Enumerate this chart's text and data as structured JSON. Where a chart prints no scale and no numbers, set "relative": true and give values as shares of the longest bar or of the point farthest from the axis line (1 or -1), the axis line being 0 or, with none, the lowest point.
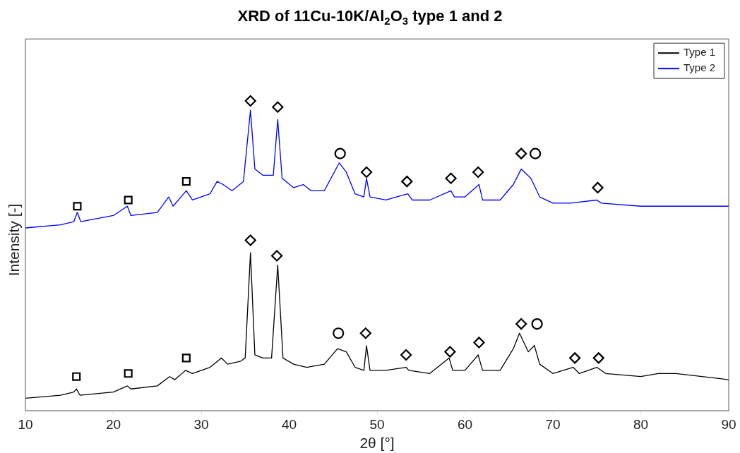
{
  "chart_data": {
    "type": "line",
    "title": "XRD of 11Cu-10K/Al$_{2}$O$_{3}$ type  1 and 2",
    "xlabel": "2θ [°]",
    "ylabel": "Intensity [-]",
    "relative": true,
    "xlim": [
      10,
      90
    ],
    "xticks": [
      10,
      20,
      30,
      40,
      50,
      60,
      70,
      80,
      90
    ],
    "tick_labels": "x",
    "legend": "top right",
    "grid": false,
    "marker": "none",
    "line_style": "solid",
    "series": [
      {
        "name": "Type 1",
        "color": "#000000",
        "x": [
          10,
          14,
          15.5,
          15.8,
          16.2,
          20,
          21.6,
          22,
          25,
          26.4,
          27,
          28.2,
          29,
          31,
          32.3,
          33,
          34.5,
          35,
          35.6,
          36.1,
          37,
          38,
          38.7,
          39.3,
          40.5,
          42,
          44,
          45.5,
          46.5,
          47.5,
          48.5,
          48.8,
          49.2,
          51,
          53.3,
          53.6,
          56,
          58.2,
          58.6,
          60,
          61.5,
          62,
          64,
          65.5,
          66.2,
          67.2,
          67.9,
          68.5,
          70,
          72.3,
          73,
          75,
          76,
          80,
          82,
          84,
          90
        ],
        "values": [
          0.04,
          0.05,
          0.06,
          0.07,
          0.05,
          0.06,
          0.08,
          0.07,
          0.08,
          0.11,
          0.1,
          0.13,
          0.12,
          0.14,
          0.17,
          0.15,
          0.16,
          0.17,
          0.51,
          0.18,
          0.17,
          0.17,
          0.47,
          0.17,
          0.15,
          0.14,
          0.15,
          0.2,
          0.19,
          0.14,
          0.13,
          0.21,
          0.13,
          0.13,
          0.14,
          0.13,
          0.12,
          0.17,
          0.13,
          0.13,
          0.18,
          0.13,
          0.13,
          0.2,
          0.25,
          0.19,
          0.21,
          0.15,
          0.12,
          0.14,
          0.12,
          0.14,
          0.12,
          0.11,
          0.12,
          0.12,
          0.1
        ]
      },
      {
        "name": "Type 2",
        "color": "#0000ff",
        "x": [
          10,
          14,
          15.5,
          15.9,
          16.3,
          20,
          21.6,
          22,
          25,
          26.3,
          26.8,
          28.3,
          29,
          31,
          31.8,
          32.5,
          33.5,
          34.8,
          35.6,
          36.1,
          37,
          38.2,
          38.7,
          39.2,
          40.5,
          41.6,
          42.5,
          44,
          45.7,
          46.5,
          47.5,
          48.5,
          48.8,
          49.2,
          51,
          53.5,
          54,
          56,
          58.4,
          58.8,
          60,
          61.6,
          62,
          64,
          65.5,
          66.4,
          67.5,
          68.5,
          70,
          72,
          75,
          75.5,
          80,
          85,
          90
        ],
        "values": [
          0.59,
          0.6,
          0.61,
          0.64,
          0.61,
          0.63,
          0.66,
          0.63,
          0.64,
          0.69,
          0.66,
          0.71,
          0.68,
          0.7,
          0.74,
          0.73,
          0.71,
          0.74,
          0.97,
          0.78,
          0.76,
          0.76,
          0.94,
          0.75,
          0.72,
          0.73,
          0.71,
          0.71,
          0.8,
          0.77,
          0.7,
          0.69,
          0.75,
          0.69,
          0.68,
          0.7,
          0.68,
          0.68,
          0.71,
          0.69,
          0.69,
          0.73,
          0.68,
          0.68,
          0.73,
          0.78,
          0.75,
          0.69,
          0.67,
          0.67,
          0.68,
          0.67,
          0.66,
          0.66,
          0.66
        ]
      },
      {
        "type": "scatter",
        "marker": "square",
        "color": "#000000",
        "x": [
          15.9,
          21.7,
          28.3,
          15.8,
          21.7,
          28.3
        ],
        "values": [
          0.66,
          0.68,
          0.74,
          0.11,
          0.12,
          0.17
        ]
      },
      {
        "type": "scatter",
        "marker": "diamond",
        "color": "#000000",
        "x": [
          35.6,
          38.7,
          48.8,
          53.4,
          58.4,
          61.5,
          66.4,
          75.1,
          35.6,
          38.6,
          48.7,
          53.3,
          58.3,
          61.6,
          66.4,
          72.5,
          75.2
        ],
        "values": [
          1,
          0.98,
          0.77,
          0.74,
          0.75,
          0.77,
          0.83,
          0.72,
          0.55,
          0.5,
          0.25,
          0.18,
          0.19,
          0.22,
          0.28,
          0.17,
          0.17
        ]
      },
      {
        "type": "scatter",
        "marker": "circle",
        "color": "#000000",
        "x": [
          45.8,
          68,
          45.6,
          68.2
        ],
        "values": [
          0.83,
          0.83,
          0.25,
          0.28
        ]
      }
    ]
  }
}
